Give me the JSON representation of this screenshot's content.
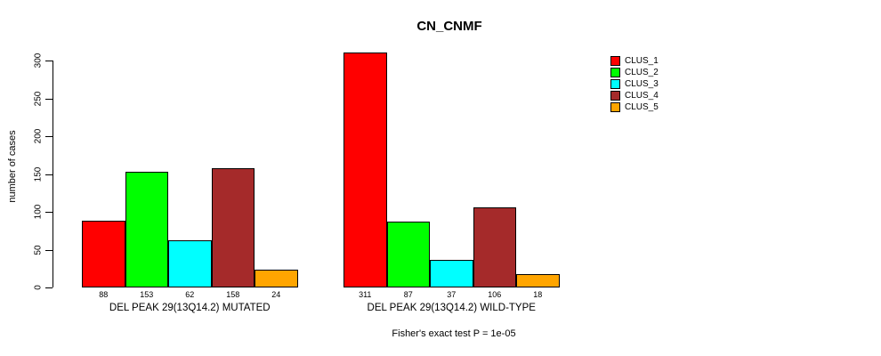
{
  "chart_data": {
    "type": "bar",
    "title": "CN_CNMF",
    "ylabel": "number of cases",
    "ylim": [
      0,
      300
    ],
    "yticks": [
      0,
      50,
      100,
      150,
      200,
      250,
      300
    ],
    "grid": false,
    "legend_position": "top-right",
    "legend": [
      {
        "label": "CLUS_1",
        "color": "#FF0000"
      },
      {
        "label": "CLUS_2",
        "color": "#00FF00"
      },
      {
        "label": "CLUS_3",
        "color": "#00FFFF"
      },
      {
        "label": "CLUS_4",
        "color": "#A52A2A"
      },
      {
        "label": "CLUS_5",
        "color": "#FFA500"
      }
    ],
    "groups": [
      {
        "label": "DEL PEAK 29(13Q14.2) MUTATED",
        "values": [
          88,
          153,
          62,
          158,
          24
        ]
      },
      {
        "label": "DEL PEAK 29(13Q14.2) WILD-TYPE",
        "values": [
          311,
          87,
          37,
          106,
          18
        ]
      }
    ],
    "annotation": "Fisher's exact test P = 1e-05"
  }
}
